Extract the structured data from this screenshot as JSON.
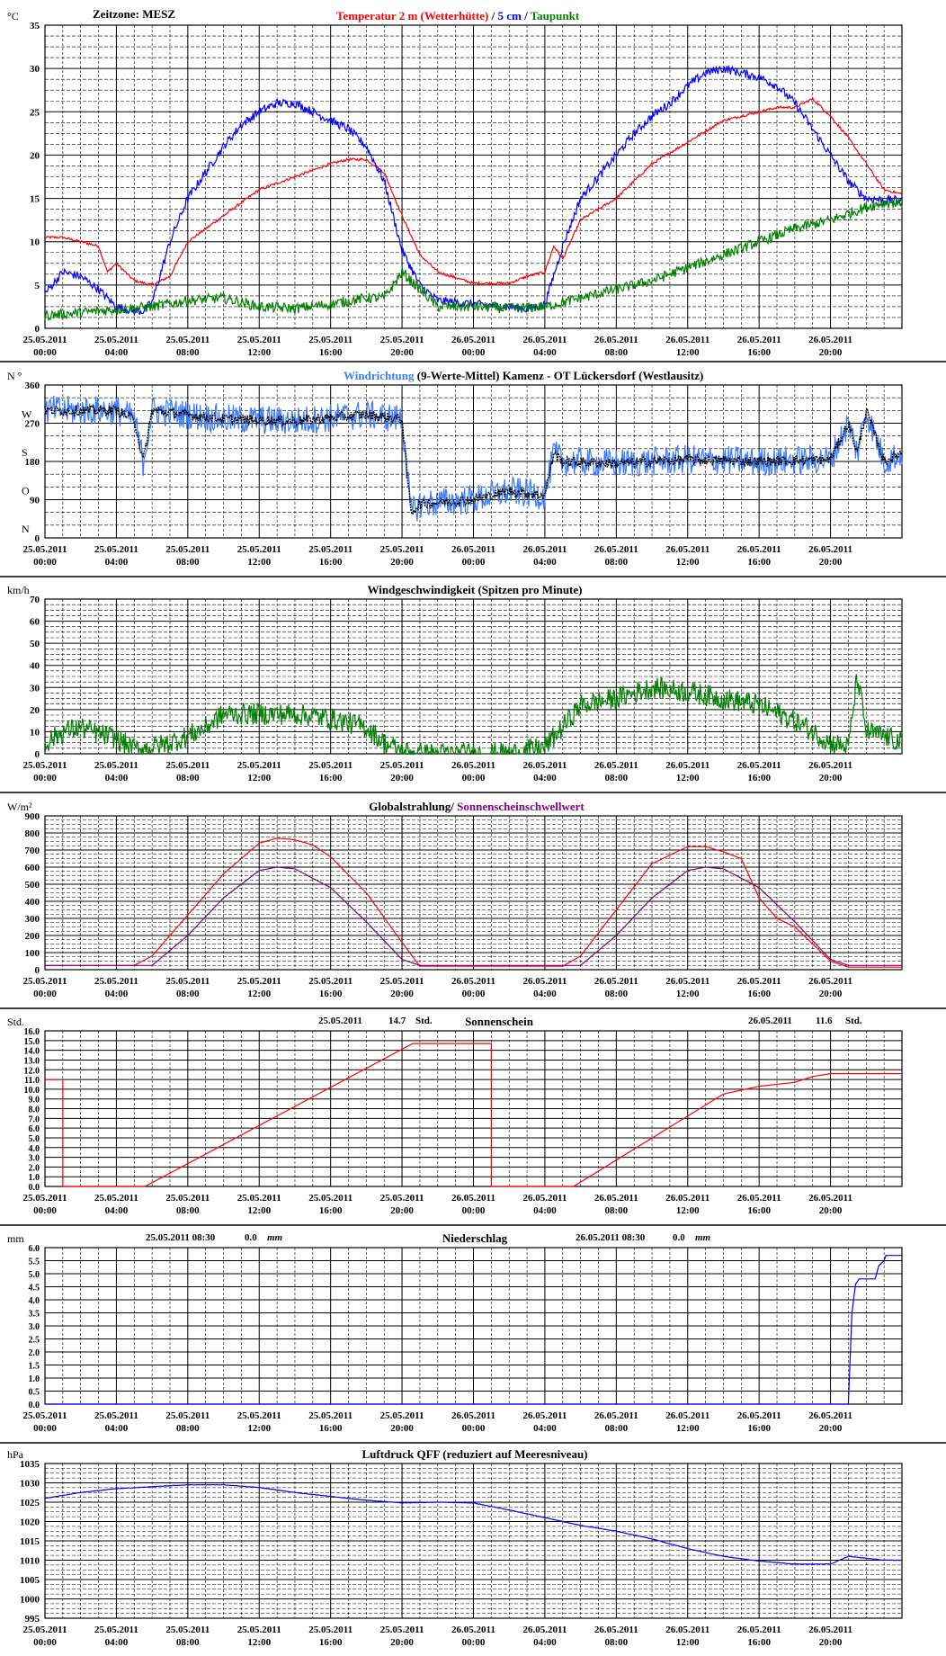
{
  "x_ticks": [
    [
      "25.05.2011",
      "00:00"
    ],
    [
      "25.05.2011",
      "04:00"
    ],
    [
      "25.05.2011",
      "08:00"
    ],
    [
      "25.05.2011",
      "12:00"
    ],
    [
      "25.05.2011",
      "16:00"
    ],
    [
      "25.05.2011",
      "20:00"
    ],
    [
      "26.05.2011",
      "00:00"
    ],
    [
      "26.05.2011",
      "04:00"
    ],
    [
      "26.05.2011",
      "08:00"
    ],
    [
      "26.05.2011",
      "12:00"
    ],
    [
      "26.05.2011",
      "16:00"
    ],
    [
      "26.05.2011",
      "20:00"
    ]
  ],
  "colors": {
    "red": "#ff0000",
    "blue": "#0000ff",
    "green": "#008000",
    "lightblue": "#3a7bff",
    "purple": "#800080",
    "black": "#000000"
  },
  "chart_data": [
    {
      "id": "temperature",
      "type": "line",
      "unit": "°C",
      "note": "Zeitzone: MESZ",
      "title_parts": [
        [
          "Temperatur 2 m (Wetterhütte)",
          "#ff0000"
        ],
        [
          "  /  ",
          "#000000"
        ],
        [
          "5 cm",
          "#0000ff"
        ],
        [
          " / ",
          "#000000"
        ],
        [
          "Taupunkt",
          "#008000"
        ]
      ],
      "ylim": [
        0,
        35
      ],
      "yticks": [
        "0",
        "5",
        "10",
        "15",
        "20",
        "25",
        "30",
        "35"
      ],
      "xlim": [
        0,
        48
      ],
      "series": [
        {
          "name": "Temperatur 2 m (Wetterhütte)",
          "color": "#ff0000",
          "noise": 0.15,
          "x": [
            0,
            1,
            2,
            3,
            3.5,
            4,
            5,
            6,
            7,
            8,
            10,
            12,
            14,
            16,
            17,
            18,
            19,
            20,
            21,
            22,
            24,
            26,
            27,
            28,
            28.5,
            29,
            30,
            32,
            34,
            36,
            38,
            40,
            41,
            42,
            43,
            44,
            45,
            46,
            47,
            48
          ],
          "y": [
            10.5,
            10.5,
            10.0,
            9.5,
            6.5,
            7.5,
            5.5,
            5.0,
            6.0,
            10.0,
            13.0,
            16.0,
            17.5,
            19.0,
            19.5,
            19.5,
            18.0,
            13.0,
            8.5,
            6.5,
            5.2,
            5.2,
            6.0,
            6.5,
            9.5,
            8.0,
            12.5,
            15.0,
            19.0,
            21.5,
            24.0,
            25.0,
            25.5,
            25.5,
            26.5,
            24.5,
            22.0,
            19.0,
            16.0,
            15.5
          ]
        },
        {
          "name": "5 cm",
          "color": "#0000ff",
          "noise": 0.5,
          "x": [
            0,
            1,
            2,
            3,
            4,
            5,
            5.5,
            6,
            7,
            8,
            9,
            10,
            11,
            12,
            13,
            14,
            15,
            16,
            17,
            18,
            19,
            20,
            21,
            22,
            24,
            26,
            27,
            28,
            29,
            30,
            31,
            32,
            33,
            34,
            35,
            36,
            37,
            38,
            39,
            40,
            41,
            42,
            43,
            44,
            45,
            46,
            47,
            48
          ],
          "y": [
            4.0,
            6.5,
            6.0,
            4.5,
            2.5,
            2.0,
            2.0,
            3.0,
            10.0,
            15.0,
            18.0,
            21.0,
            23.5,
            25.0,
            26.0,
            26.0,
            25.0,
            24.0,
            23.0,
            21.0,
            17.0,
            9.0,
            5.0,
            3.2,
            2.8,
            2.5,
            2.2,
            2.8,
            9.5,
            15.0,
            17.5,
            20.0,
            22.5,
            24.5,
            26.0,
            28.0,
            29.5,
            30.0,
            29.5,
            29.0,
            28.0,
            26.0,
            23.0,
            20.0,
            17.0,
            15.0,
            14.8,
            14.8
          ]
        },
        {
          "name": "Taupunkt",
          "color": "#008000",
          "noise": 0.6,
          "x": [
            0,
            2,
            4,
            6,
            8,
            10,
            12,
            14,
            16,
            18,
            19,
            20,
            21,
            22,
            24,
            26,
            28,
            30,
            32,
            34,
            36,
            38,
            40,
            42,
            44,
            46,
            47,
            48
          ],
          "y": [
            1.5,
            1.8,
            2.2,
            2.5,
            3.2,
            3.5,
            2.5,
            2.3,
            2.8,
            3.5,
            3.5,
            6.5,
            4.5,
            2.5,
            2.5,
            2.3,
            2.5,
            3.5,
            4.5,
            5.5,
            7.0,
            8.5,
            10.0,
            11.5,
            12.5,
            14.0,
            14.5,
            14.5
          ]
        }
      ]
    },
    {
      "id": "wind_direction",
      "type": "line",
      "unit": "N °",
      "note": "",
      "title_parts": [
        [
          "Windrichtung",
          "#3a7bff"
        ],
        [
          " (9-Werte-Mittel)",
          "#000000"
        ],
        [
          "        Kamenz - OT Lückersdorf (Westlausitz)",
          "#000000"
        ]
      ],
      "ylim": [
        0,
        360
      ],
      "yticks": [
        "0",
        "90",
        "180",
        "270",
        "360"
      ],
      "ycompass": [
        "N",
        "O",
        "S",
        "W",
        ""
      ],
      "xlim": [
        0,
        48
      ],
      "series": [
        {
          "name": "Windrichtung",
          "color": "#3a7bff",
          "noise": 35,
          "x": [
            0,
            4,
            5,
            5.5,
            6,
            10,
            14,
            18,
            20,
            20.5,
            21,
            24,
            26,
            28,
            28.5,
            29,
            32,
            36,
            40,
            44,
            45,
            45.5,
            46,
            47,
            48
          ],
          "y": [
            300,
            300,
            280,
            180,
            300,
            280,
            275,
            290,
            280,
            60,
            80,
            90,
            110,
            100,
            200,
            180,
            175,
            185,
            180,
            185,
            270,
            200,
            300,
            180,
            200
          ]
        },
        {
          "name": "Mittel",
          "color": "#000000",
          "noise": 12,
          "x": [
            0,
            4,
            5,
            5.5,
            6,
            10,
            14,
            18,
            20,
            20.5,
            21,
            24,
            26,
            28,
            28.5,
            29,
            32,
            36,
            40,
            44,
            45,
            45.5,
            46,
            47,
            48
          ],
          "y": [
            300,
            300,
            280,
            180,
            300,
            280,
            275,
            290,
            280,
            60,
            80,
            90,
            110,
            100,
            200,
            180,
            175,
            185,
            180,
            185,
            270,
            200,
            300,
            180,
            200
          ]
        }
      ]
    },
    {
      "id": "wind_speed",
      "type": "line",
      "unit": "km/h",
      "note": "",
      "title_parts": [
        [
          "Windgeschwindigkeit (Spitzen pro Minute)",
          "#000000"
        ]
      ],
      "ylim": [
        0,
        70
      ],
      "yticks": [
        "0",
        "10",
        "20",
        "30",
        "40",
        "50",
        "60",
        "70"
      ],
      "xlim": [
        0,
        48
      ],
      "series": [
        {
          "name": "Windgeschwindigkeit",
          "color": "#008000",
          "noise": 5,
          "x": [
            0,
            1,
            2,
            3,
            4,
            5,
            6,
            7,
            8,
            9,
            10,
            12,
            14,
            16,
            18,
            19,
            20,
            21,
            22,
            24,
            26,
            28,
            29,
            30,
            32,
            34,
            36,
            38,
            40,
            42,
            43,
            44,
            45,
            45.5,
            46,
            47,
            48
          ],
          "y": [
            5,
            10,
            12,
            9,
            7,
            2,
            3,
            5,
            8,
            12,
            18,
            18,
            18,
            16,
            12,
            5,
            1,
            0,
            0,
            0,
            0,
            3,
            12,
            22,
            25,
            30,
            28,
            25,
            22,
            15,
            10,
            5,
            3,
            35,
            10,
            8,
            5
          ]
        }
      ]
    },
    {
      "id": "global_radiation",
      "type": "line",
      "unit": "W/m²",
      "note": "",
      "title_parts": [
        [
          "Globalstrahlung/ ",
          "#000000"
        ],
        [
          "Sonnenscheinschwellwert",
          "#800080"
        ]
      ],
      "ylim": [
        0,
        900
      ],
      "yticks": [
        "0",
        "100",
        "200",
        "300",
        "400",
        "500",
        "600",
        "700",
        "800",
        "900"
      ],
      "xlim": [
        0,
        48
      ],
      "series": [
        {
          "name": "Globalstrahlung",
          "color": "#ff0000",
          "noise": 0,
          "x": [
            0,
            5,
            6,
            8,
            10,
            12,
            13,
            14,
            15,
            16,
            18,
            20,
            21,
            24,
            29,
            30,
            32,
            34,
            36,
            37,
            38,
            39,
            40,
            41,
            42,
            43,
            44,
            45,
            48
          ],
          "y": [
            25,
            25,
            80,
            320,
            560,
            740,
            770,
            760,
            730,
            660,
            450,
            160,
            20,
            20,
            20,
            80,
            350,
            620,
            720,
            720,
            690,
            650,
            420,
            300,
            250,
            150,
            50,
            15,
            15
          ]
        },
        {
          "name": "Sonnenscheinschwellwert",
          "color": "#800080",
          "noise": 0,
          "x": [
            0,
            5,
            6,
            8,
            10,
            12,
            13,
            14,
            16,
            18,
            20,
            21,
            24,
            29,
            30,
            32,
            34,
            36,
            37,
            38,
            40,
            42,
            44,
            45,
            48
          ],
          "y": [
            25,
            25,
            25,
            200,
            420,
            580,
            600,
            590,
            480,
            280,
            60,
            25,
            25,
            25,
            25,
            200,
            420,
            580,
            600,
            590,
            480,
            280,
            60,
            25,
            25
          ]
        }
      ]
    },
    {
      "id": "sunshine",
      "type": "line",
      "unit": "Std.",
      "note": "",
      "title_parts": [
        [
          "Sonnenschein",
          "#000000"
        ]
      ],
      "summaries": [
        [
          "25.05.2011",
          "14.7",
          "Std."
        ],
        [
          "26.05.2011",
          "11.6",
          "Std."
        ]
      ],
      "ylim": [
        0,
        16
      ],
      "yticks": [
        "0.0",
        "1.0",
        "2.0",
        "3.0",
        "4.0",
        "5.0",
        "6.0",
        "7.0",
        "8.0",
        "9.0",
        "10.0",
        "11.0",
        "12.0",
        "13.0",
        "14.0",
        "15.0",
        "16.0"
      ],
      "xlim": [
        0,
        48
      ],
      "series": [
        {
          "name": "Sonnenschein",
          "color": "#ff0000",
          "noise": 0,
          "x": [
            0,
            1,
            1,
            5.6,
            20.6,
            25,
            25,
            29.6,
            38,
            40,
            42,
            43,
            44,
            48
          ],
          "y": [
            11,
            11,
            0,
            0,
            14.7,
            14.7,
            0,
            0,
            9.5,
            10.3,
            10.7,
            11.3,
            11.6,
            11.6
          ]
        }
      ]
    },
    {
      "id": "precipitation",
      "type": "line",
      "unit": "mm",
      "note": "",
      "title_parts": [
        [
          "Niederschlag",
          "#000000"
        ]
      ],
      "summaries": [
        [
          "25.05.2011 08:30",
          "0.0",
          "mm"
        ],
        [
          "26.05.2011 08:30",
          "0.0",
          "mm"
        ]
      ],
      "ylim": [
        0,
        6
      ],
      "yticks": [
        "0.0",
        "0.5",
        "1.0",
        "1.5",
        "2.0",
        "2.5",
        "3.0",
        "3.5",
        "4.0",
        "4.5",
        "5.0",
        "5.5",
        "6.0"
      ],
      "xlim": [
        0,
        48
      ],
      "series": [
        {
          "name": "Niederschlag",
          "color": "#0000ff",
          "noise": 0,
          "x": [
            0,
            45,
            45.2,
            45.4,
            45.6,
            46.5,
            46.7,
            47.0,
            47.1,
            48
          ],
          "y": [
            0,
            0,
            3.5,
            4.6,
            4.8,
            4.8,
            5.3,
            5.5,
            5.7,
            5.7
          ]
        }
      ]
    },
    {
      "id": "pressure",
      "type": "line",
      "unit": "hPa",
      "note": "",
      "title_parts": [
        [
          "Luftdruck QFF (reduziert auf Meeresniveau)",
          "#000000"
        ]
      ],
      "ylim": [
        995,
        1035
      ],
      "yticks": [
        "995",
        "1000",
        "1005",
        "1010",
        "1015",
        "1020",
        "1025",
        "1030",
        "1035"
      ],
      "xlim": [
        0,
        48
      ],
      "series": [
        {
          "name": "Luftdruck",
          "color": "#0000ff",
          "noise": 0.05,
          "x": [
            0,
            2,
            4,
            6,
            8,
            10,
            12,
            14,
            16,
            18,
            20,
            22,
            24,
            26,
            28,
            30,
            32,
            34,
            36,
            38,
            40,
            42,
            44,
            45,
            46,
            47,
            48
          ],
          "y": [
            1026,
            1027.5,
            1028.5,
            1029,
            1029.5,
            1029.5,
            1028.8,
            1027.5,
            1026.5,
            1025.5,
            1024.8,
            1025,
            1024.8,
            1023,
            1021,
            1019,
            1017.5,
            1015.5,
            1013,
            1011,
            1009.8,
            1009,
            1009,
            1011,
            1010.5,
            1010,
            1010
          ]
        }
      ]
    }
  ]
}
